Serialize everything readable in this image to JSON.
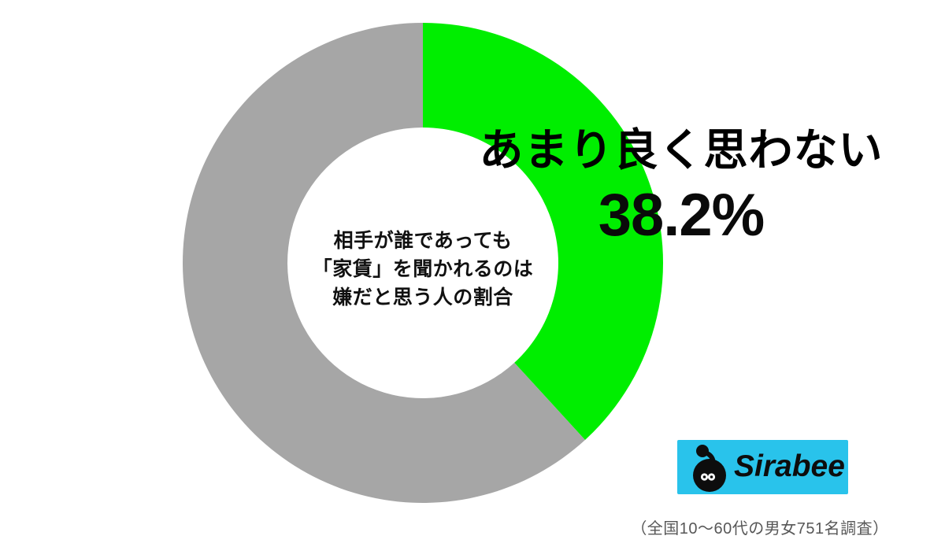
{
  "chart_data": {
    "type": "pie",
    "variant": "donut",
    "direction": "clockwise",
    "start_angle_deg": 0,
    "slices": [
      {
        "name": "あまり良く思わない",
        "value_pct": 38.2,
        "color": "#00ee00"
      },
      {
        "name": "unlabeled-remainder",
        "value_pct": 61.8,
        "color": "#a6a6a6"
      }
    ],
    "center_text_lines": [
      "相手が誰であっても",
      "「家賃」を聞かれるのは",
      "嫌だと思う人の割合"
    ],
    "callout": {
      "label": "あまり良く思わない",
      "value_text": "38.2%"
    },
    "background": "#ffffff"
  },
  "branding": {
    "logo_text": "Sirabee",
    "logo_bg_color": "#29c3eb",
    "logo_fg_color": "#0d0d0d"
  },
  "caption": {
    "text": "（全国10〜60代の男女751名調査）",
    "color": "#575757"
  }
}
